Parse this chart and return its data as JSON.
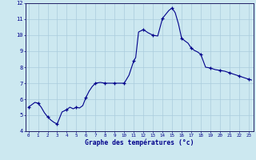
{
  "xlabel": "Graphe des températures (°c)",
  "background_color": "#cce8f0",
  "line_color": "#00008B",
  "marker_color": "#00008B",
  "grid_color": "#aaccdd",
  "xlim": [
    -0.3,
    23.5
  ],
  "ylim": [
    4,
    12
  ],
  "yticks": [
    4,
    5,
    6,
    7,
    8,
    9,
    10,
    11,
    12
  ],
  "xticks": [
    0,
    1,
    2,
    3,
    4,
    5,
    6,
    7,
    8,
    9,
    10,
    11,
    12,
    13,
    14,
    15,
    16,
    17,
    18,
    19,
    20,
    21,
    22,
    23
  ],
  "hours": [
    0,
    0.33,
    0.67,
    1,
    1.33,
    1.67,
    2,
    2.33,
    2.67,
    3,
    3.5,
    4,
    4.33,
    4.67,
    5,
    5.33,
    5.67,
    6,
    6.33,
    6.67,
    7,
    7.5,
    8,
    8.5,
    9,
    9.5,
    10,
    10.5,
    11,
    11.2,
    11.5,
    12,
    12.5,
    13,
    13.5,
    14,
    14.33,
    14.67,
    15,
    15.33,
    15.67,
    16,
    16.33,
    16.67,
    17,
    17.33,
    17.67,
    18,
    18.5,
    19,
    19.5,
    20,
    20.5,
    21,
    21.5,
    22,
    22.5,
    23,
    23.3
  ],
  "temps": [
    5.5,
    5.65,
    5.8,
    5.75,
    5.5,
    5.15,
    4.9,
    4.7,
    4.55,
    4.45,
    5.2,
    5.35,
    5.5,
    5.4,
    5.5,
    5.45,
    5.6,
    6.1,
    6.5,
    6.8,
    7.0,
    7.05,
    7.0,
    7.0,
    7.0,
    7.0,
    7.0,
    7.5,
    8.4,
    8.6,
    10.2,
    10.35,
    10.15,
    10.0,
    9.95,
    11.05,
    11.3,
    11.55,
    11.7,
    11.4,
    10.7,
    9.8,
    9.65,
    9.5,
    9.2,
    9.05,
    8.95,
    8.8,
    8.0,
    7.95,
    7.85,
    7.8,
    7.75,
    7.65,
    7.55,
    7.45,
    7.35,
    7.25,
    7.2
  ],
  "marker_hours": [
    0,
    1,
    2,
    3,
    4,
    5,
    6,
    7,
    8,
    9,
    10,
    11,
    12,
    13,
    14,
    15,
    16,
    17,
    18,
    19,
    20,
    21,
    22,
    23
  ],
  "marker_temps": [
    5.5,
    5.75,
    4.9,
    4.45,
    5.35,
    5.5,
    6.1,
    7.0,
    7.0,
    7.0,
    7.0,
    8.4,
    10.35,
    10.0,
    11.05,
    11.7,
    9.8,
    9.2,
    8.8,
    7.95,
    7.8,
    7.65,
    7.45,
    7.25
  ]
}
